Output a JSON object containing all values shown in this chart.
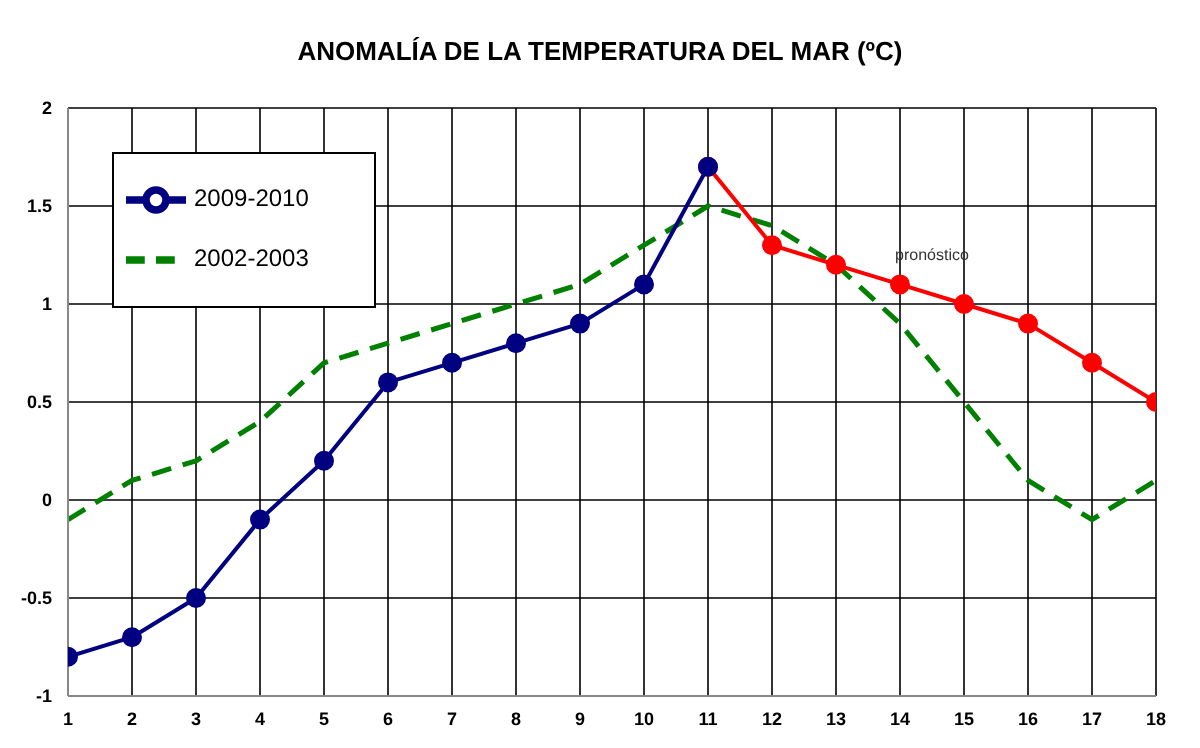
{
  "chart_data": {
    "type": "line",
    "title": "ANOMALÍA DE LA TEMPERATURA DEL MAR (ºC)",
    "xlim": [
      1,
      18
    ],
    "xticks": [
      1,
      2,
      3,
      4,
      5,
      6,
      7,
      8,
      9,
      10,
      11,
      12,
      13,
      14,
      15,
      16,
      17,
      18
    ],
    "ylim": [
      -1,
      2
    ],
    "yticks": [
      -1,
      -0.5,
      0,
      0.5,
      1,
      1.5,
      2
    ],
    "grid": true,
    "legend": "top left",
    "series": [
      {
        "name": "2009-2010",
        "color": "#000080",
        "marker": "circle",
        "line_style": "solid",
        "x": [
          1,
          2,
          3,
          4,
          5,
          6,
          7,
          8,
          9,
          10,
          11
        ],
        "values": [
          -0.8,
          -0.7,
          -0.5,
          -0.1,
          0.2,
          0.6,
          0.7,
          0.8,
          0.9,
          1.1,
          1.7
        ]
      },
      {
        "color": "#ff0000",
        "marker": "circle",
        "line_style": "solid",
        "x": [
          11,
          12,
          13,
          14,
          15,
          16,
          17,
          18
        ],
        "values": [
          1.7,
          1.3,
          1.2,
          1.1,
          1.0,
          0.9,
          0.7,
          0.5
        ]
      },
      {
        "name": "2002-2003",
        "color": "#008000",
        "marker": "none",
        "line_style": "dashed",
        "x": [
          1,
          2,
          3,
          4,
          5,
          6,
          7,
          8,
          9,
          10,
          11,
          12,
          13,
          14,
          15,
          16,
          17,
          18
        ],
        "values": [
          -0.1,
          0.1,
          0.2,
          0.4,
          0.7,
          0.8,
          0.9,
          1.0,
          1.1,
          1.3,
          1.5,
          1.4,
          1.2,
          0.9,
          0.5,
          0.1,
          -0.1,
          0.1
        ]
      }
    ],
    "annotations": [
      {
        "text": "pronóstico",
        "x": 14.5,
        "y": 1.1
      }
    ]
  }
}
